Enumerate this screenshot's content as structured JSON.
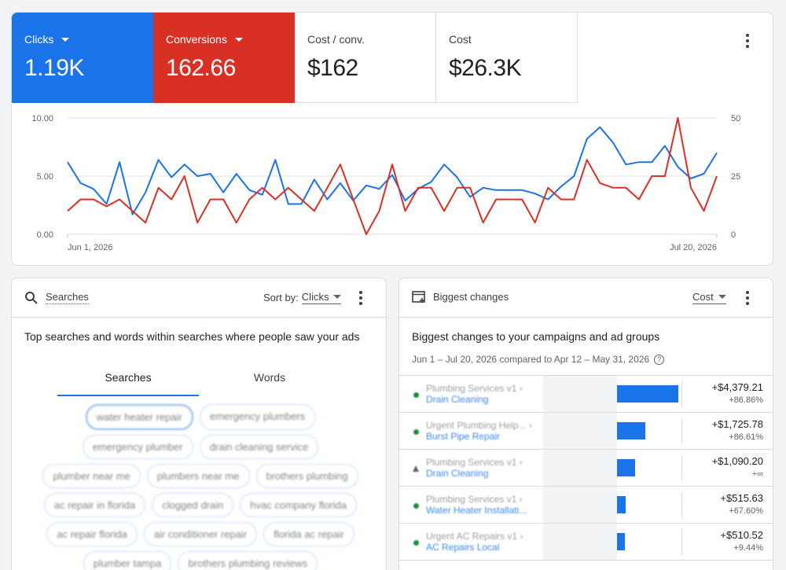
{
  "performance": {
    "metrics": [
      {
        "label": "Clicks",
        "value": "1.19K",
        "has_dropdown": true,
        "color": "#1a73e8"
      },
      {
        "label": "Conversions",
        "value": "162.66",
        "has_dropdown": true,
        "color": "#d93025"
      },
      {
        "label": "Cost / conv.",
        "value": "$162",
        "has_dropdown": false
      },
      {
        "label": "Cost",
        "value": "$26.3K",
        "has_dropdown": false
      }
    ]
  },
  "chart_data": {
    "type": "line",
    "x_labels": [
      "Jun 1, 2026",
      "Jul 20, 2026"
    ],
    "y_left": {
      "ticks": [
        "10.00",
        "5.00",
        "0.00"
      ],
      "range": [
        0,
        10
      ]
    },
    "y_right": {
      "ticks": [
        "50",
        "25",
        "0"
      ],
      "range": [
        0,
        50
      ]
    },
    "series": [
      {
        "axis": "left",
        "color": "#1a73e8",
        "values": [
          6.2,
          4.4,
          3.9,
          2.6,
          6.2,
          1.7,
          3.6,
          6.4,
          4.9,
          6.0,
          5.0,
          5.2,
          3.6,
          5.2,
          3.8,
          3.4,
          6.4,
          2.6,
          2.6,
          4.7,
          3.0,
          4.4,
          2.9,
          4.2,
          3.9,
          5.1,
          2.9,
          3.9,
          4.5,
          6.0,
          4.9,
          3.2,
          4.0,
          3.8,
          3.8,
          3.8,
          3.5,
          3.0,
          4.1,
          5.0,
          8.2,
          9.2,
          7.9,
          6.0,
          6.2,
          6.2,
          7.6,
          5.8,
          4.8,
          5.2,
          7.0
        ]
      },
      {
        "axis": "right",
        "color": "#d93025",
        "values": [
          10,
          15,
          15,
          12,
          15,
          10,
          5,
          20,
          15,
          25,
          5,
          15,
          15,
          5,
          15,
          20,
          15,
          20,
          15,
          10,
          20,
          30,
          15,
          0,
          10,
          30,
          10,
          20,
          20,
          10,
          20,
          20,
          5,
          15,
          15,
          15,
          5,
          20,
          15,
          15,
          32,
          22,
          20,
          20,
          15,
          25,
          25,
          50,
          20,
          10,
          25
        ]
      }
    ]
  },
  "searches": {
    "title": "Searches",
    "sort_label": "Sort by:",
    "sort_value": "Clicks",
    "description": "Top searches and words within searches where people saw your ads",
    "tabs": [
      "Searches",
      "Words"
    ],
    "chip_rows": [
      [
        "water heater repair",
        "emergency plumbers"
      ],
      [
        "emergency plumber",
        "drain cleaning service"
      ],
      [
        "plumber near me",
        "plumbers near me",
        "brothers plumbing"
      ],
      [
        "ac repair in florida",
        "clogged drain",
        "hvac company florida"
      ],
      [
        "ac repair florida",
        "air conditioner repair",
        "florida ac repair"
      ],
      [
        "plumber tampa",
        "brothers plumbing reviews"
      ]
    ]
  },
  "changes": {
    "title": "Biggest changes",
    "sort_value": "Cost",
    "heading": "Biggest changes to your campaigns and ad groups",
    "range": "Jun 1 – Jul 20, 2026 compared to Apr 12 – May 31, 2026",
    "rows": [
      {
        "campaign": "Plumbing Services v1 ›",
        "group": "Drain Cleaning",
        "status": "active",
        "bar": 1.0,
        "value": "+$4,379.21",
        "pct": "+86.86%"
      },
      {
        "campaign": "Urgent Plumbing Help... ›",
        "group": "Burst Pipe Repair",
        "status": "active",
        "bar": 0.46,
        "value": "+$1,725.78",
        "pct": "+86.61%"
      },
      {
        "campaign": "Plumbing Services v1 ›",
        "group": "Drain Cleaning",
        "status": "paused",
        "bar": 0.29,
        "value": "+$1,090.20",
        "pct": "+∞"
      },
      {
        "campaign": "Plumbing Services v1 ›",
        "group": "Water Heater Installati...",
        "status": "active",
        "bar": 0.14,
        "value": "+$515.63",
        "pct": "+67.60%"
      },
      {
        "campaign": "Urgent AC Repairs v1 ›",
        "group": "AC Repairs Local",
        "status": "active",
        "bar": 0.13,
        "value": "+$510.52",
        "pct": "+9.44%"
      }
    ]
  }
}
